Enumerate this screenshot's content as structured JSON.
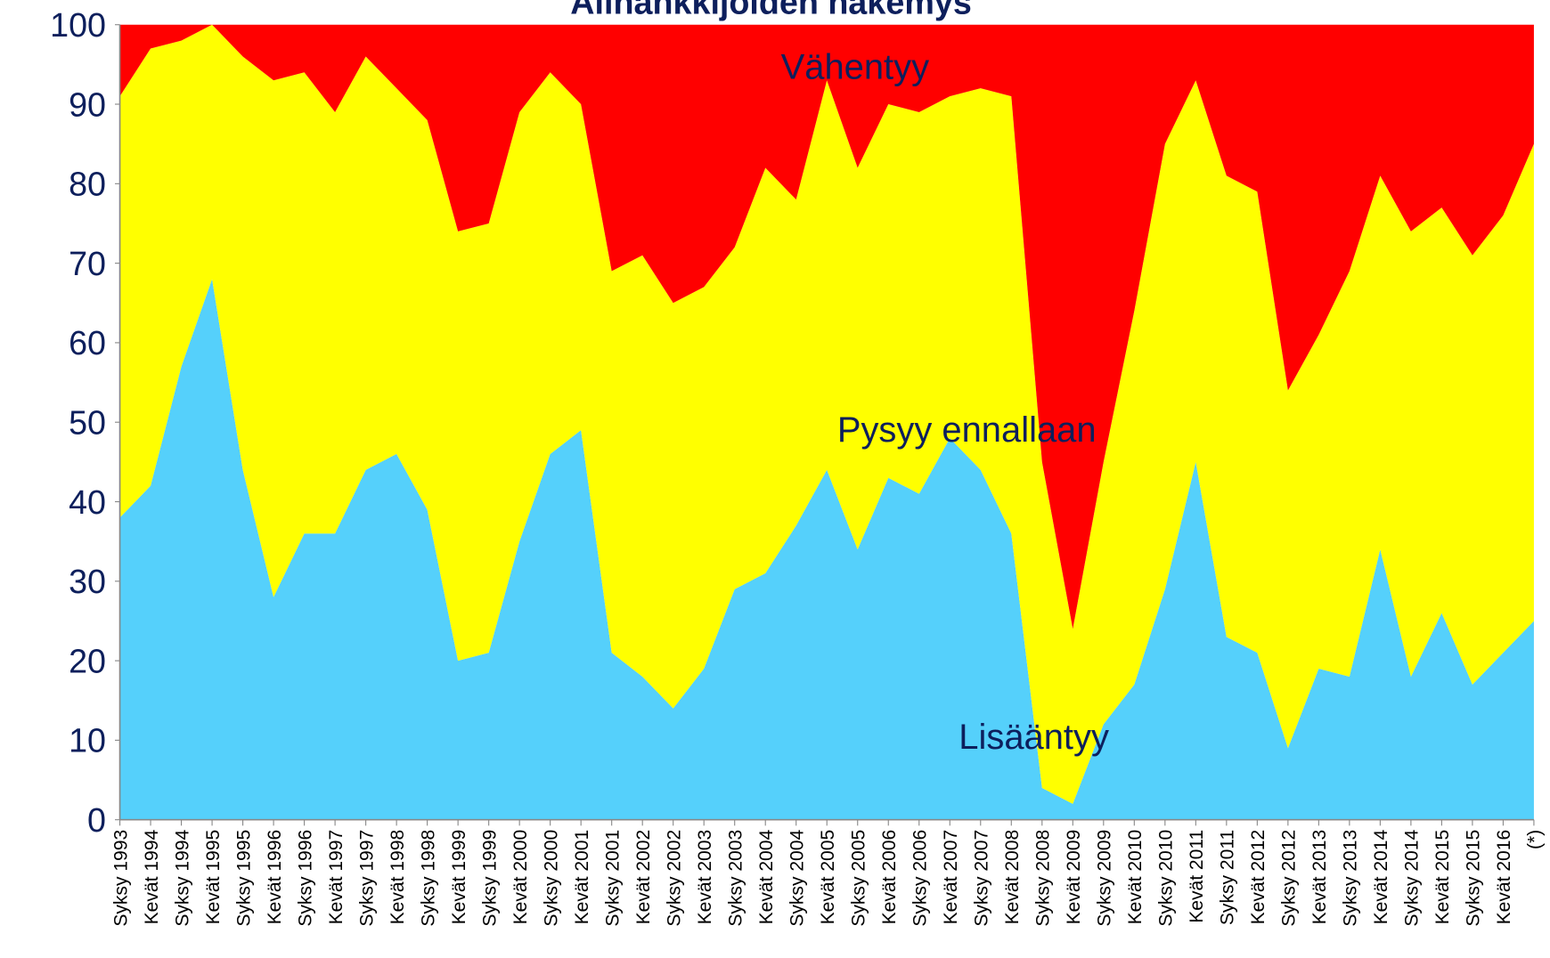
{
  "chart_data": {
    "type": "stacked_area",
    "title": "Alihankkijoiden näkemys",
    "categories": [
      "Syksy 1993",
      "Kevät 1994",
      "Syksy 1994",
      "Kevät 1995",
      "Syksy 1995",
      "Kevät 1996",
      "Syksy 1996",
      "Kevät 1997",
      "Syksy 1997",
      "Kevät 1998",
      "Syksy 1998",
      "Kevät 1999",
      "Syksy 1999",
      "Kevät 2000",
      "Syksy 2000",
      "Kevät 2001",
      "Syksy 2001",
      "Kevät 2002",
      "Syksy 2002",
      "Kevät 2003",
      "Syksy 2003",
      "Kevät 2004",
      "Syksy 2004",
      "Kevät 2005",
      "Syksy 2005",
      "Kevät 2006",
      "Syksy 2006",
      "Kevät 2007",
      "Syksy 2007",
      "Kevät 2008",
      "Syksy 2008",
      "Kevät 2009",
      "Syksy 2009",
      "Kevät 2010",
      "Syksy 2010",
      "Kevät 2011",
      "Syksy 2011",
      "Kevät 2012",
      "Syksy 2012",
      "Kevät 2013",
      "Syksy 2013",
      "Kevät 2014",
      "Syksy 2014",
      "Kevät 2015",
      "Syksy 2015",
      "Kevät 2016",
      "(*)"
    ],
    "series": [
      {
        "name": "Lisääntyy",
        "color": "#55d0fb",
        "values": [
          38,
          42,
          57,
          68,
          44,
          28,
          36,
          36,
          44,
          46,
          39,
          20,
          21,
          35,
          46,
          49,
          21,
          18,
          14,
          19,
          29,
          31,
          37,
          44,
          34,
          43,
          41,
          48,
          44,
          36,
          4,
          2,
          12,
          17,
          29,
          45,
          23,
          21,
          9,
          19,
          18,
          34,
          18,
          26,
          17,
          21,
          25
        ]
      },
      {
        "name": "Pysyy ennallaan",
        "color": "#ffff00",
        "values": [
          53,
          55,
          41,
          32,
          52,
          65,
          58,
          53,
          52,
          46,
          49,
          54,
          54,
          54,
          48,
          41,
          48,
          53,
          51,
          48,
          43,
          51,
          41,
          49,
          48,
          47,
          48,
          43,
          48,
          55,
          41,
          22,
          33,
          47,
          56,
          48,
          58,
          58,
          45,
          42,
          51,
          47,
          56,
          51,
          54,
          55,
          60
        ]
      },
      {
        "name": "Vähentyy",
        "color": "#ff0000",
        "values": [
          9,
          3,
          2,
          0,
          4,
          7,
          6,
          11,
          4,
          8,
          12,
          26,
          25,
          11,
          6,
          10,
          31,
          29,
          35,
          33,
          28,
          18,
          22,
          7,
          18,
          10,
          11,
          9,
          8,
          9,
          55,
          76,
          55,
          36,
          15,
          7,
          19,
          21,
          46,
          39,
          31,
          19,
          26,
          23,
          29,
          24,
          15
        ]
      }
    ],
    "ylim": [
      0,
      100
    ],
    "yticks": [
      0,
      10,
      20,
      30,
      40,
      50,
      60,
      70,
      80,
      90,
      100
    ]
  }
}
